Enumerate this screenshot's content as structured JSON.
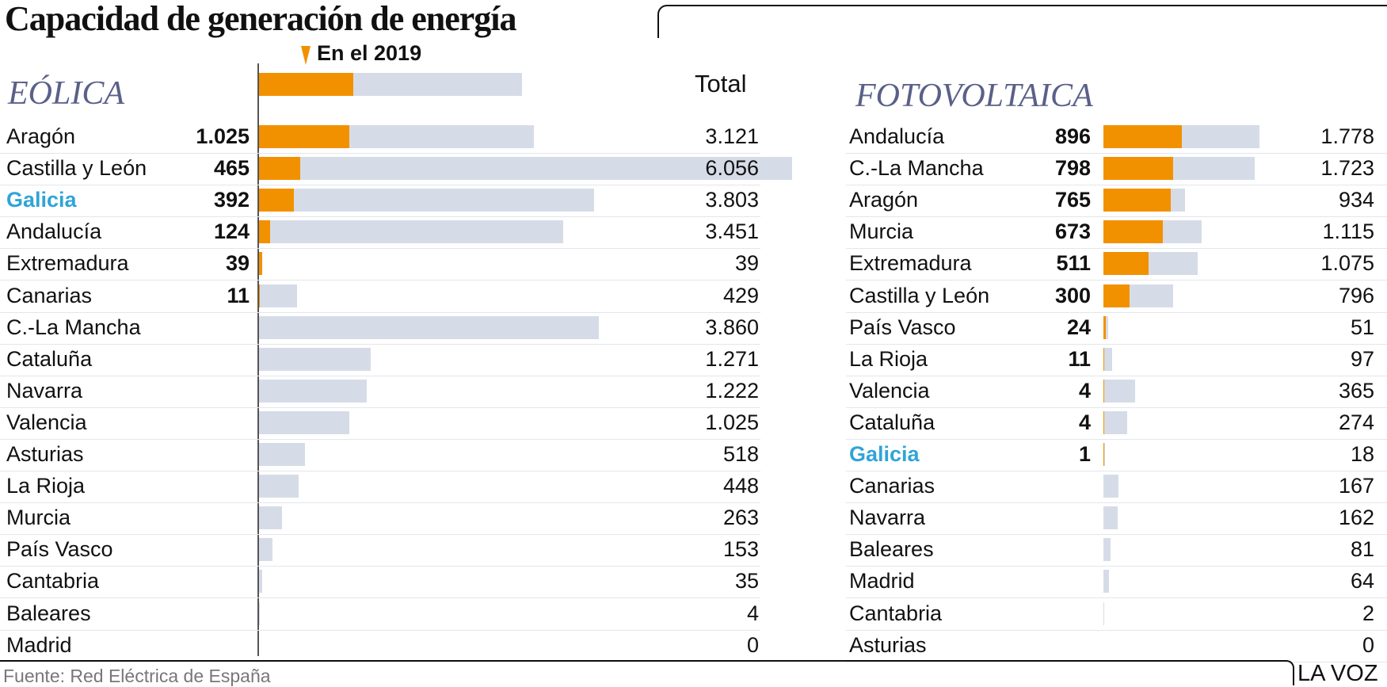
{
  "title": "Capacidad de generación de energía",
  "legend": {
    "label": "En el 2019",
    "total_label": "Total",
    "colors": {
      "2019": "#f29100",
      "total": "#d6dce7"
    }
  },
  "source": "Fuente: Red Eléctrica de España",
  "brand": "LA VOZ",
  "chart_data": [
    {
      "type": "bar",
      "title": "EÓLICA",
      "series_names": [
        "En el 2019",
        "Total"
      ],
      "rows": [
        {
          "region": "Aragón",
          "y2019": "1.025",
          "v2019": 1025,
          "total": "3.121",
          "vtotal": 3121
        },
        {
          "region": "Castilla y León",
          "y2019": "465",
          "v2019": 465,
          "total": "6.056",
          "vtotal": 6056
        },
        {
          "region": "Galicia",
          "y2019": "392",
          "v2019": 392,
          "total": "3.803",
          "vtotal": 3803,
          "highlight": true
        },
        {
          "region": "Andalucía",
          "y2019": "124",
          "v2019": 124,
          "total": "3.451",
          "vtotal": 3451
        },
        {
          "region": "Extremadura",
          "y2019": "39",
          "v2019": 39,
          "total": "39",
          "vtotal": 39
        },
        {
          "region": "Canarias",
          "y2019": "11",
          "v2019": 11,
          "total": "429",
          "vtotal": 429
        },
        {
          "region": "C.-La Mancha",
          "y2019": "",
          "v2019": 0,
          "total": "3.860",
          "vtotal": 3860
        },
        {
          "region": "Cataluña",
          "y2019": "",
          "v2019": 0,
          "total": "1.271",
          "vtotal": 1271
        },
        {
          "region": "Navarra",
          "y2019": "",
          "v2019": 0,
          "total": "1.222",
          "vtotal": 1222
        },
        {
          "region": "Valencia",
          "y2019": "",
          "v2019": 0,
          "total": "1.025",
          "vtotal": 1025
        },
        {
          "region": "Asturias",
          "y2019": "",
          "v2019": 0,
          "total": "518",
          "vtotal": 518
        },
        {
          "region": "La Rioja",
          "y2019": "",
          "v2019": 0,
          "total": "448",
          "vtotal": 448
        },
        {
          "region": "Murcia",
          "y2019": "",
          "v2019": 0,
          "total": "263",
          "vtotal": 263
        },
        {
          "region": "País Vasco",
          "y2019": "",
          "v2019": 0,
          "total": "153",
          "vtotal": 153
        },
        {
          "region": "Cantabria",
          "y2019": "",
          "v2019": 0,
          "total": "35",
          "vtotal": 35
        },
        {
          "region": "Baleares",
          "y2019": "",
          "v2019": 0,
          "total": "4",
          "vtotal": 4
        },
        {
          "region": "Madrid",
          "y2019": "",
          "v2019": 0,
          "total": "0",
          "vtotal": 0
        }
      ]
    },
    {
      "type": "bar",
      "title": "FOTOVOLTAICA",
      "series_names": [
        "En el 2019",
        "Total"
      ],
      "rows": [
        {
          "region": "Andalucía",
          "y2019": "896",
          "v2019": 896,
          "total": "1.778",
          "vtotal": 1778
        },
        {
          "region": "C.-La Mancha",
          "y2019": "798",
          "v2019": 798,
          "total": "1.723",
          "vtotal": 1723
        },
        {
          "region": "Aragón",
          "y2019": "765",
          "v2019": 765,
          "total": "934",
          "vtotal": 934
        },
        {
          "region": "Murcia",
          "y2019": "673",
          "v2019": 673,
          "total": "1.115",
          "vtotal": 1115
        },
        {
          "region": "Extremadura",
          "y2019": "511",
          "v2019": 511,
          "total": "1.075",
          "vtotal": 1075
        },
        {
          "region": "Castilla y León",
          "y2019": "300",
          "v2019": 300,
          "total": "796",
          "vtotal": 796
        },
        {
          "region": "País Vasco",
          "y2019": "24",
          "v2019": 24,
          "total": "51",
          "vtotal": 51
        },
        {
          "region": "La Rioja",
          "y2019": "11",
          "v2019": 11,
          "total": "97",
          "vtotal": 97
        },
        {
          "region": "Valencia",
          "y2019": "4",
          "v2019": 4,
          "total": "365",
          "vtotal": 365
        },
        {
          "region": "Cataluña",
          "y2019": "4",
          "v2019": 4,
          "total": "274",
          "vtotal": 274
        },
        {
          "region": "Galicia",
          "y2019": "1",
          "v2019": 1,
          "total": "18",
          "vtotal": 18,
          "highlight": true
        },
        {
          "region": "Canarias",
          "y2019": "",
          "v2019": 0,
          "total": "167",
          "vtotal": 167
        },
        {
          "region": "Navarra",
          "y2019": "",
          "v2019": 0,
          "total": "162",
          "vtotal": 162
        },
        {
          "region": "Baleares",
          "y2019": "",
          "v2019": 0,
          "total": "81",
          "vtotal": 81
        },
        {
          "region": "Madrid",
          "y2019": "",
          "v2019": 0,
          "total": "64",
          "vtotal": 64
        },
        {
          "region": "Cantabria",
          "y2019": "",
          "v2019": 0,
          "total": "2",
          "vtotal": 2
        },
        {
          "region": "Asturias",
          "y2019": "",
          "v2019": 0,
          "total": "0",
          "vtotal": 0
        }
      ]
    }
  ]
}
